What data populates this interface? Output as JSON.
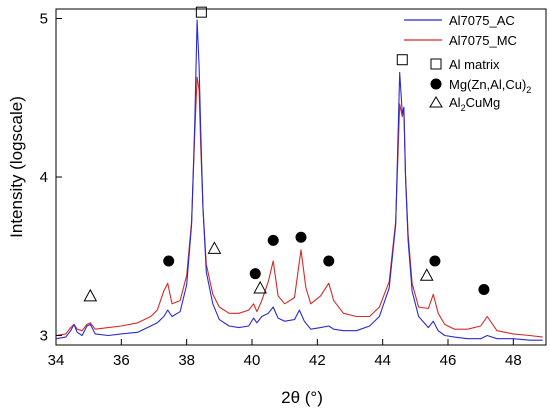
{
  "chart_data": {
    "type": "line",
    "xlabel": "2θ (°)",
    "ylabel": "Intensity (logscale)",
    "xlim": [
      34,
      49
    ],
    "ylim": [
      2.94,
      5.06
    ],
    "x_ticks": [
      "34",
      "36",
      "38",
      "40",
      "42",
      "44",
      "46",
      "48"
    ],
    "y_ticks": [
      "3",
      "4",
      "5"
    ],
    "legend_position": "top-right",
    "series": [
      {
        "name": "Al7075_AC",
        "color": "#2b2bc8",
        "x": [
          34.0,
          34.3,
          34.45,
          34.55,
          34.65,
          34.8,
          34.95,
          35.05,
          35.2,
          35.6,
          36.0,
          36.5,
          36.9,
          37.1,
          37.3,
          37.42,
          37.55,
          37.8,
          38.0,
          38.15,
          38.25,
          38.32,
          38.38,
          38.43,
          38.5,
          38.6,
          38.8,
          39.0,
          39.3,
          39.6,
          39.9,
          40.05,
          40.15,
          40.3,
          40.5,
          40.65,
          40.8,
          41.0,
          41.3,
          41.45,
          41.6,
          41.8,
          42.1,
          42.35,
          42.5,
          42.8,
          43.2,
          43.6,
          43.9,
          44.2,
          44.4,
          44.52,
          44.6,
          44.65,
          44.7,
          44.78,
          44.9,
          45.1,
          45.4,
          45.55,
          45.7,
          45.9,
          46.2,
          46.6,
          47.0,
          47.2,
          47.5,
          48.0,
          48.5,
          48.9
        ],
        "values": [
          2.98,
          2.99,
          3.03,
          3.07,
          3.02,
          3.0,
          3.06,
          3.07,
          3.01,
          3.0,
          3.01,
          3.02,
          3.06,
          3.08,
          3.12,
          3.16,
          3.12,
          3.15,
          3.32,
          3.7,
          4.35,
          4.99,
          4.7,
          4.3,
          3.8,
          3.4,
          3.2,
          3.1,
          3.06,
          3.05,
          3.06,
          3.11,
          3.08,
          3.12,
          3.14,
          3.18,
          3.11,
          3.09,
          3.1,
          3.16,
          3.09,
          3.04,
          3.05,
          3.06,
          3.04,
          3.03,
          3.03,
          3.06,
          3.12,
          3.3,
          3.7,
          4.66,
          4.4,
          4.44,
          4.0,
          3.6,
          3.28,
          3.12,
          3.05,
          3.09,
          3.03,
          3.0,
          2.99,
          2.98,
          2.98,
          3.0,
          2.98,
          2.98,
          2.97,
          2.97
        ]
      },
      {
        "name": "Al7075_MC",
        "color": "#d22b2b",
        "x": [
          34.0,
          34.3,
          34.45,
          34.55,
          34.65,
          34.8,
          34.95,
          35.05,
          35.2,
          35.6,
          36.0,
          36.5,
          36.9,
          37.1,
          37.3,
          37.42,
          37.55,
          37.8,
          38.0,
          38.15,
          38.25,
          38.32,
          38.38,
          38.43,
          38.5,
          38.6,
          38.8,
          39.0,
          39.3,
          39.6,
          39.9,
          40.05,
          40.15,
          40.3,
          40.5,
          40.65,
          40.8,
          41.0,
          41.3,
          41.5,
          41.65,
          41.8,
          42.1,
          42.35,
          42.5,
          42.8,
          43.2,
          43.6,
          43.9,
          44.2,
          44.4,
          44.52,
          44.6,
          44.65,
          44.7,
          44.78,
          44.9,
          45.1,
          45.4,
          45.55,
          45.7,
          45.9,
          46.2,
          46.6,
          47.0,
          47.2,
          47.5,
          48.0,
          48.5,
          48.9
        ],
        "values": [
          3.0,
          3.01,
          3.05,
          3.07,
          3.04,
          3.03,
          3.07,
          3.08,
          3.04,
          3.05,
          3.06,
          3.08,
          3.12,
          3.16,
          3.28,
          3.33,
          3.2,
          3.22,
          3.38,
          3.72,
          4.28,
          4.63,
          4.55,
          4.2,
          3.8,
          3.45,
          3.26,
          3.18,
          3.14,
          3.14,
          3.16,
          3.2,
          3.15,
          3.22,
          3.34,
          3.47,
          3.25,
          3.2,
          3.24,
          3.54,
          3.3,
          3.2,
          3.25,
          3.33,
          3.22,
          3.14,
          3.12,
          3.12,
          3.18,
          3.34,
          3.72,
          4.46,
          4.38,
          4.42,
          4.02,
          3.64,
          3.33,
          3.18,
          3.17,
          3.26,
          3.14,
          3.07,
          3.04,
          3.04,
          3.06,
          3.12,
          3.03,
          3.01,
          3.0,
          2.99
        ]
      }
    ],
    "markers": [
      {
        "label": "Al matrix",
        "shape": "square",
        "points": [
          [
            38.45,
            5.04
          ],
          [
            44.6,
            4.74
          ]
        ]
      },
      {
        "label": "Mg(Zn,Al,Cu)",
        "label_sub": "2",
        "shape": "circle",
        "points": [
          [
            37.45,
            3.47
          ],
          [
            40.1,
            3.39
          ],
          [
            40.65,
            3.6
          ],
          [
            41.5,
            3.62
          ],
          [
            42.35,
            3.47
          ],
          [
            45.6,
            3.47
          ],
          [
            47.1,
            3.29
          ]
        ]
      },
      {
        "label": "Al",
        "label_sub": "2",
        "label_tail": "CuMg",
        "shape": "triangle",
        "points": [
          [
            35.05,
            3.25
          ],
          [
            38.85,
            3.55
          ],
          [
            40.25,
            3.3
          ],
          [
            45.35,
            3.38
          ]
        ]
      }
    ]
  }
}
